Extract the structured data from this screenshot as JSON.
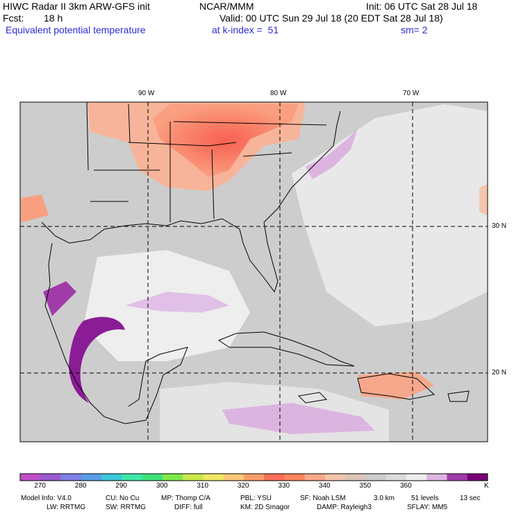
{
  "header": {
    "title": "HIWC Radar II 3km ARW-GFS init",
    "center": "NCAR/MMM",
    "init": "Init: 06 UTC Sat 28 Jul 18",
    "fcst_label": "Fcst:",
    "fcst_value": "18 h",
    "valid": "Valid: 00 UTC Sun 29 Jul 18 (20 EDT Sat 28 Jul 18)",
    "field": "Equivalent potential temperature",
    "level": "at k-index =  51",
    "smoothing": "sm= 2"
  },
  "map": {
    "lon_labels": [
      "90 W",
      "80 W",
      "70 W"
    ],
    "lat_labels": [
      "30 N",
      "20 N"
    ]
  },
  "colorbar": {
    "unit": "K",
    "tick_labels": [
      "270",
      "280",
      "290",
      "300",
      "310",
      "320",
      "330",
      "340",
      "350",
      "360"
    ],
    "colors": [
      "#c04fc8",
      "#9b59d0",
      "#7f7fe8",
      "#5a9ee8",
      "#3ec8d8",
      "#3ee8a8",
      "#3ee07a",
      "#7ee84a",
      "#c8e84a",
      "#f0e860",
      "#fac878",
      "#fa9f6a",
      "#fa6e5a",
      "#f8855c",
      "#faa88a",
      "#f3c5ac",
      "#dcc6b8",
      "#cdcdcd",
      "#dcdcdc",
      "#eeeeee",
      "#dcb4e0",
      "#a03ca8",
      "#7a0078"
    ]
  },
  "footer": {
    "line1": [
      "Model Info: V4.0",
      "CU: No Cu",
      "MP: Thomp C/A",
      "PBL: YSU",
      "SF: Noah LSM",
      "3.0 km",
      "51 levels",
      "13 sec"
    ],
    "line2": [
      "LW: RRTMG",
      "SW: RRTMG",
      "DIFF: full",
      "KM: 2D Smagor",
      "DAMP: Rayleigh3",
      "SFLAY: MM5"
    ]
  }
}
